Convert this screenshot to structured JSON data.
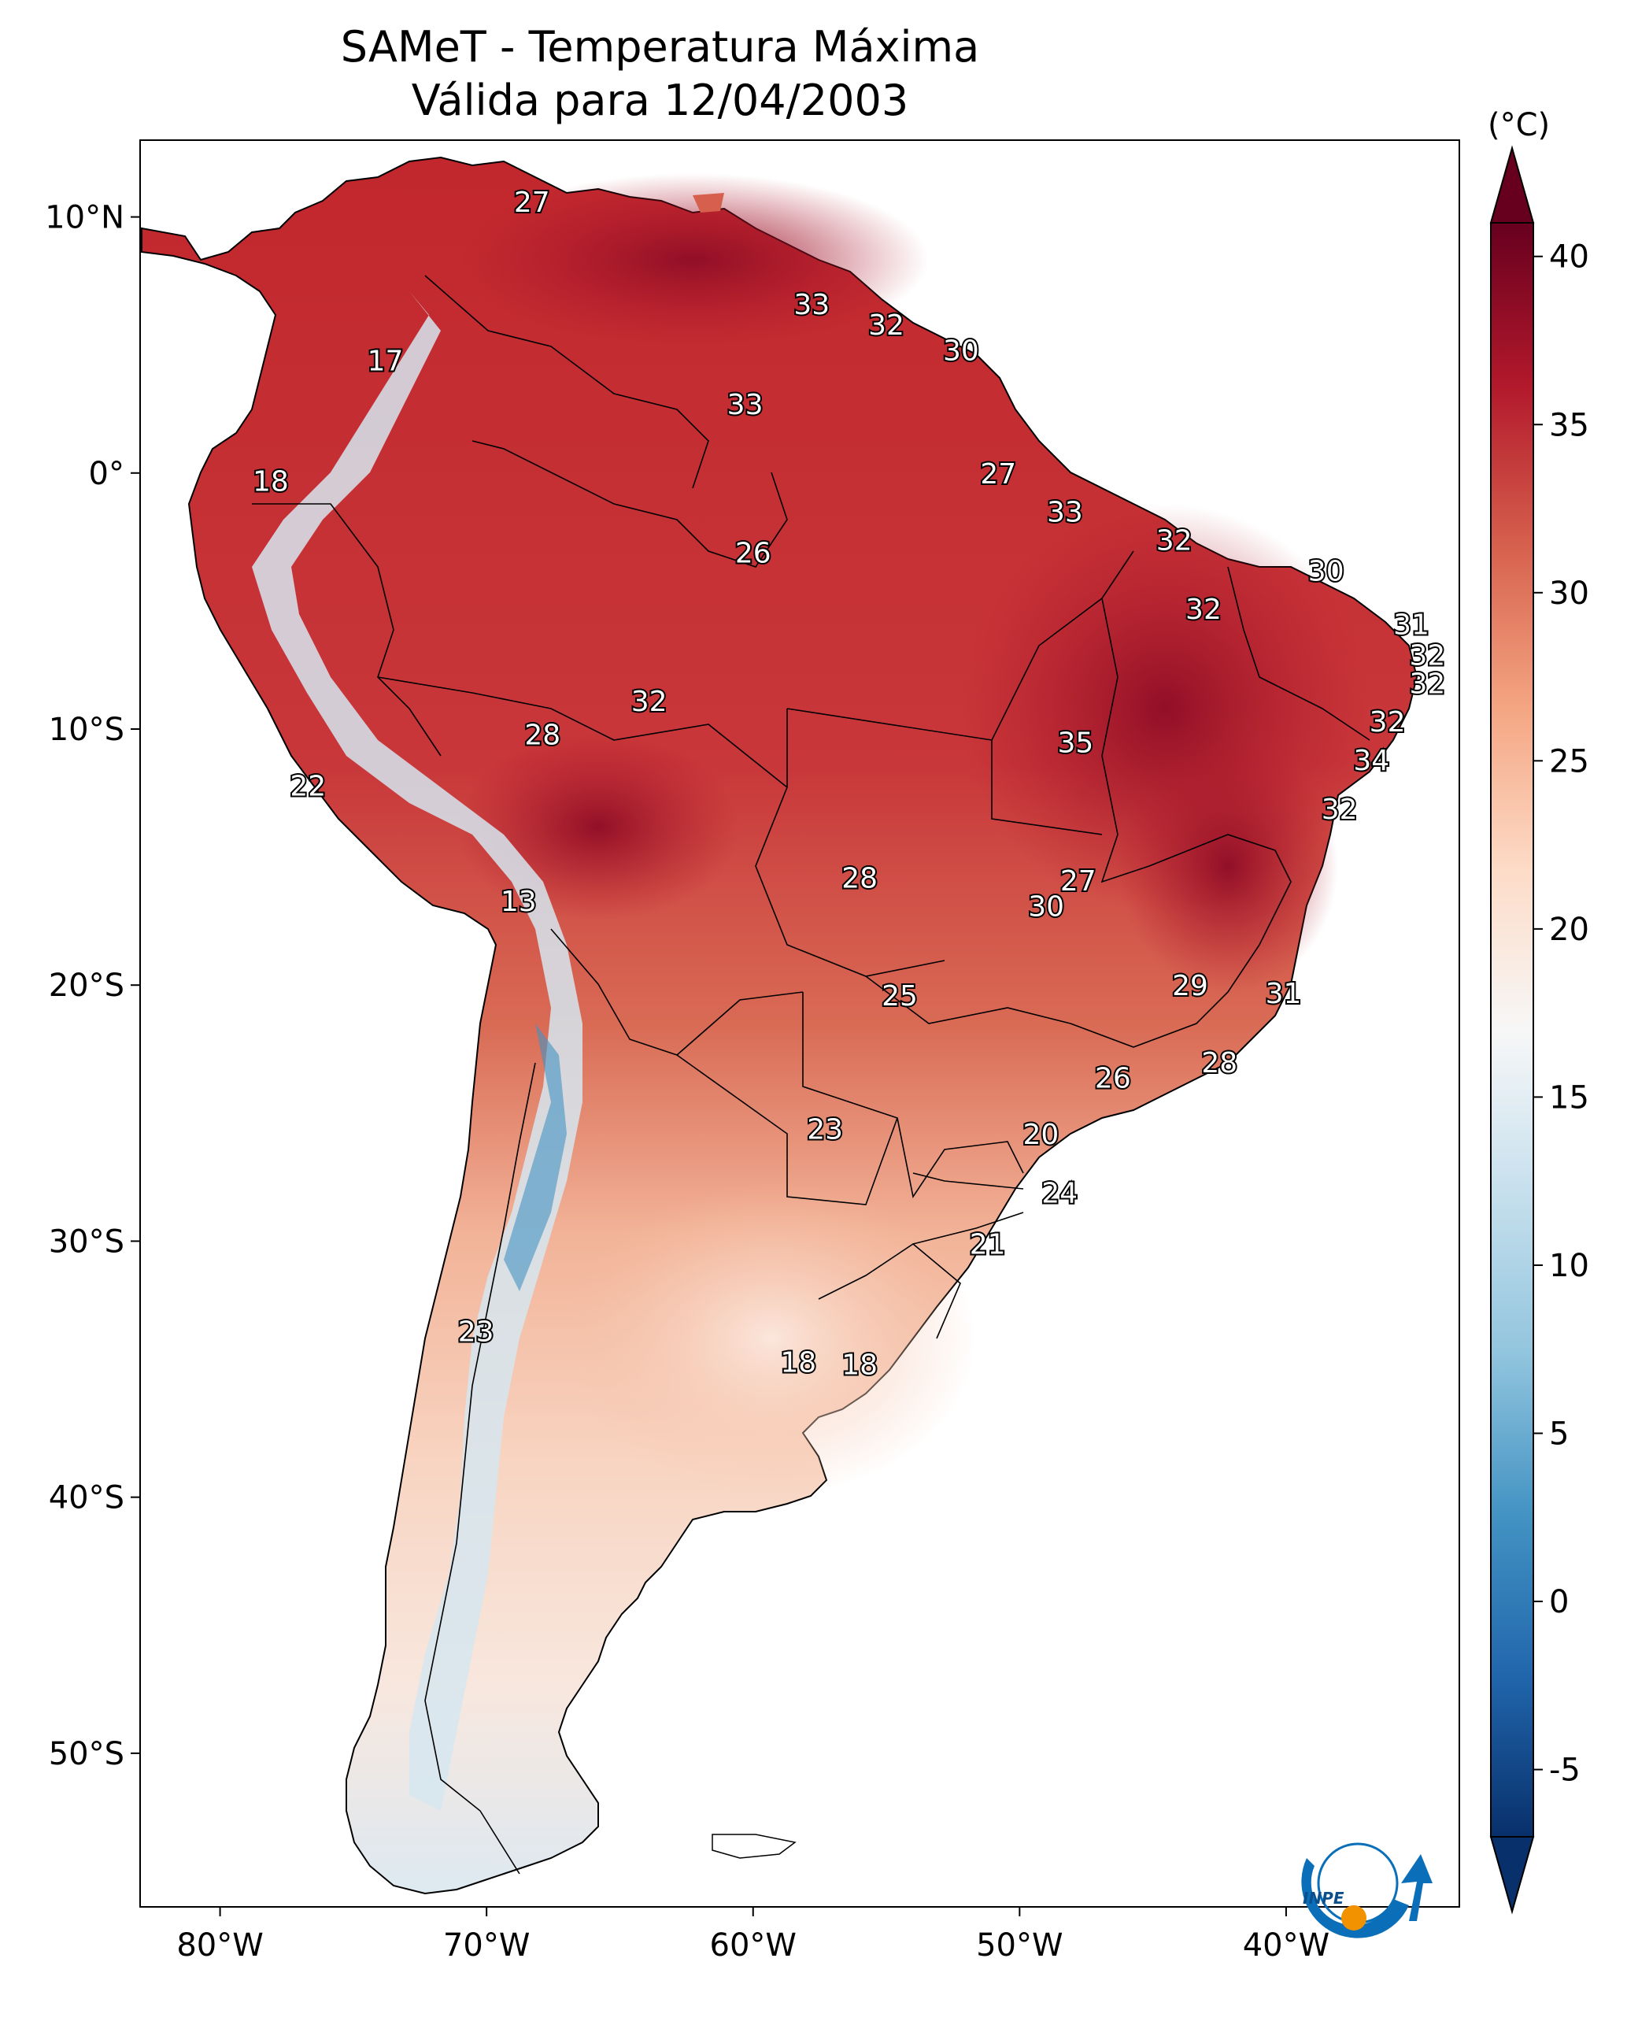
{
  "title": {
    "line1": "SAMeT - Temperatura Máxima",
    "line2": "Válida para 12/04/2003"
  },
  "colorbar": {
    "unit": "(°C)",
    "ticks": [
      "40",
      "35",
      "30",
      "25",
      "20",
      "15",
      "10",
      "5",
      "0",
      "-5"
    ],
    "min": -7,
    "max": 41,
    "tick_values": [
      40,
      35,
      30,
      25,
      20,
      15,
      10,
      5,
      0,
      -5
    ],
    "colors": [
      "#08306b",
      "#2166ac",
      "#4393c3",
      "#92c5de",
      "#d1e5f0",
      "#f7f7f7",
      "#fddbc7",
      "#f4a582",
      "#d6604d",
      "#b2182b",
      "#67001f"
    ]
  },
  "axes": {
    "lon_labels": [
      "80°W",
      "70°W",
      "60°W",
      "50°W",
      "40°W"
    ],
    "lon_values": [
      -80,
      -70,
      -60,
      -50,
      -40
    ],
    "lat_labels": [
      "10°N",
      "0°",
      "10°S",
      "20°S",
      "30°S",
      "40°S",
      "50°S"
    ],
    "lat_values": [
      10,
      0,
      -10,
      -20,
      -30,
      -40,
      -50
    ],
    "extent": {
      "lon_min": -83,
      "lon_max": -33.5,
      "lat_min": -56,
      "lat_max": 13
    }
  },
  "labels": [
    {
      "text": "27",
      "lon": -68.3,
      "lat": 10.6
    },
    {
      "text": "33",
      "lon": -57.8,
      "lat": 6.6
    },
    {
      "text": "32",
      "lon": -55,
      "lat": 5.8
    },
    {
      "text": "30",
      "lon": -52.2,
      "lat": 4.8
    },
    {
      "text": "17",
      "lon": -73.8,
      "lat": 4.4
    },
    {
      "text": "33",
      "lon": -60.3,
      "lat": 2.7
    },
    {
      "text": "27",
      "lon": -50.8,
      "lat": 0.0
    },
    {
      "text": "18",
      "lon": -78.1,
      "lat": -0.3
    },
    {
      "text": "33",
      "lon": -48.3,
      "lat": -1.5
    },
    {
      "text": "32",
      "lon": -44.2,
      "lat": -2.6
    },
    {
      "text": "26",
      "lon": -60,
      "lat": -3.1
    },
    {
      "text": "30",
      "lon": -38.5,
      "lat": -3.8
    },
    {
      "text": "32",
      "lon": -43.1,
      "lat": -5.3
    },
    {
      "text": "31",
      "lon": -35.3,
      "lat": -5.9
    },
    {
      "text": "32",
      "lon": -34.7,
      "lat": -7.1
    },
    {
      "text": "32",
      "lon": -34.7,
      "lat": -8.2
    },
    {
      "text": "32",
      "lon": -63.9,
      "lat": -8.9
    },
    {
      "text": "32",
      "lon": -36.2,
      "lat": -9.7
    },
    {
      "text": "28",
      "lon": -67.9,
      "lat": -10.2
    },
    {
      "text": "35",
      "lon": -47.9,
      "lat": -10.5
    },
    {
      "text": "34",
      "lon": -36.8,
      "lat": -11.2
    },
    {
      "text": "22",
      "lon": -76.7,
      "lat": -12.2
    },
    {
      "text": "32",
      "lon": -38,
      "lat": -13.1
    },
    {
      "text": "28",
      "lon": -56,
      "lat": -15.8
    },
    {
      "text": "27",
      "lon": -47.8,
      "lat": -15.9
    },
    {
      "text": "30",
      "lon": -49,
      "lat": -16.9
    },
    {
      "text": "13",
      "lon": -68.8,
      "lat": -16.7
    },
    {
      "text": "29",
      "lon": -43.6,
      "lat": -20.0
    },
    {
      "text": "31",
      "lon": -40.1,
      "lat": -20.3
    },
    {
      "text": "25",
      "lon": -54.5,
      "lat": -20.4
    },
    {
      "text": "28",
      "lon": -42.5,
      "lat": -23.0
    },
    {
      "text": "26",
      "lon": -46.5,
      "lat": -23.6
    },
    {
      "text": "23",
      "lon": -57.3,
      "lat": -25.6
    },
    {
      "text": "20",
      "lon": -49.2,
      "lat": -25.8
    },
    {
      "text": "24",
      "lon": -48.5,
      "lat": -28.1
    },
    {
      "text": "21",
      "lon": -51.2,
      "lat": -30.1
    },
    {
      "text": "23",
      "lon": -70.4,
      "lat": -33.5
    },
    {
      "text": "18",
      "lon": -58.3,
      "lat": -34.7
    },
    {
      "text": "18",
      "lon": -56,
      "lat": -34.8
    }
  ],
  "logo": {
    "text": "INPE"
  }
}
